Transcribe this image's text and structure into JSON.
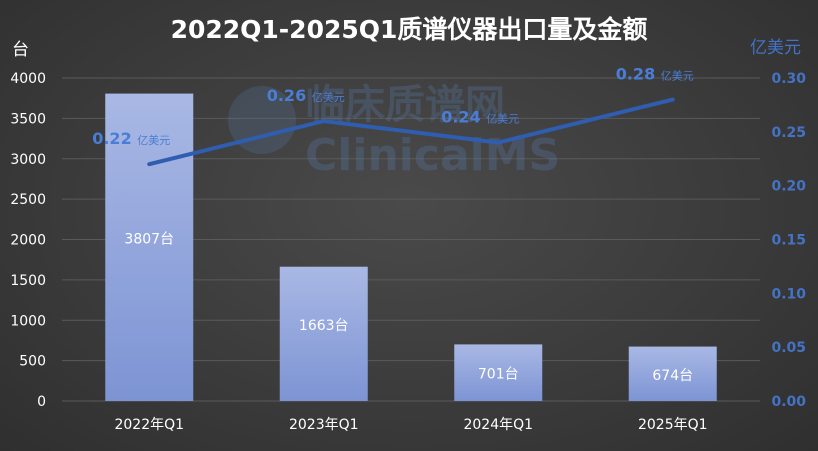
{
  "chart_data": {
    "type": "bar+line",
    "title": "2022Q1-2025Q1质谱仪器出口量及金额",
    "categories": [
      "2022年Q1",
      "2023年Q1",
      "2024年Q1",
      "2025年Q1"
    ],
    "bar_series": {
      "values": [
        3807,
        1663,
        701,
        674
      ],
      "label_suffix": "台",
      "axis": "left"
    },
    "line_series": {
      "values": [
        0.22,
        0.26,
        0.24,
        0.28
      ],
      "label_suffix": "亿美元",
      "axis": "right"
    },
    "y_left": {
      "unit": "台",
      "min": 0,
      "max": 4000,
      "step": 500
    },
    "y_right": {
      "unit": "亿美元",
      "min": 0,
      "max": 0.3,
      "step": 0.05
    },
    "grid": true,
    "colors": {
      "bar_top": "#a9b8e4",
      "bar_bottom": "#7d94d4",
      "line": "#2f5db0",
      "right_axis": "#4472c4",
      "grid": "#5a5a5a"
    }
  },
  "watermark": {
    "line1": "临床质谱网",
    "line2": "ClinicalMS"
  }
}
